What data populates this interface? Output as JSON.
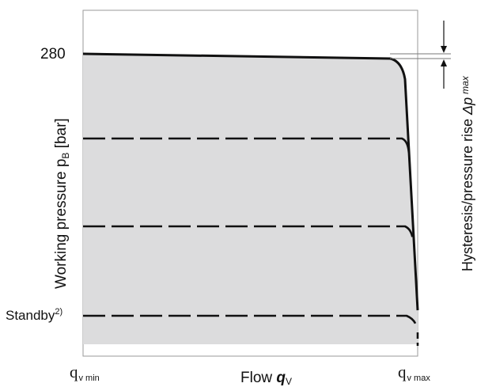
{
  "diagram": {
    "y_axis": {
      "label_main": "Working pressure p",
      "label_sub": "B",
      "label_unit": " [bar]",
      "ticks": {
        "top": "280",
        "bottom": "Standby",
        "bottom_superscript": "2)"
      }
    },
    "x_axis": {
      "label_main": "Flow ",
      "label_var": "q",
      "label_sub": "V",
      "tick_left_main": "q",
      "tick_left_sub": "v min",
      "tick_right_main": "q",
      "tick_right_sub": "v max"
    },
    "right_label": {
      "main": "Hysteresis/pressure rise ",
      "var": "Δp",
      "sub": "max"
    },
    "colors": {
      "fill": "#dcdcdd",
      "line": "#111111",
      "frame": "#9a9a9a"
    }
  }
}
